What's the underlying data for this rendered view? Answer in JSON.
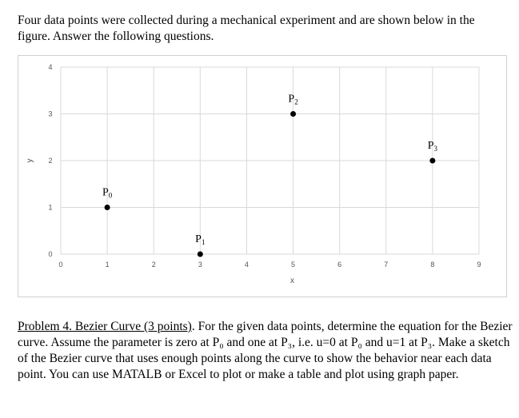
{
  "intro_text": "Four data points were collected during a mechanical experiment and are shown below in the figure.  Answer the following questions.",
  "chart_data": {
    "type": "scatter",
    "title": "",
    "xlabel": "x",
    "ylabel": "y",
    "xlim": [
      0,
      9
    ],
    "ylim": [
      0,
      4
    ],
    "x_ticks": [
      0,
      1,
      2,
      3,
      4,
      5,
      6,
      7,
      8,
      9
    ],
    "y_ticks": [
      0,
      1,
      2,
      3,
      4
    ],
    "grid": true,
    "points": [
      {
        "label": "P",
        "sub": "0",
        "x": 1,
        "y": 1
      },
      {
        "label": "P",
        "sub": "1",
        "x": 3,
        "y": 0
      },
      {
        "label": "P",
        "sub": "2",
        "x": 5,
        "y": 3
      },
      {
        "label": "P",
        "sub": "3",
        "x": 8,
        "y": 2
      }
    ]
  },
  "problem": {
    "heading": "Problem 4.  Bezier Curve (3 points)",
    "body": ".  For the given data points, determine the equation for the Bezier curve.  Assume the parameter is zero at P₀ and one at P₃, i.e. u=0 at P₀ and u=1 at P₃.  Make a sketch of the Bezier curve that uses enough points along the curve to show the behavior near each data point.  You can use MATALB or Excel to plot or make a table and plot using graph paper."
  }
}
